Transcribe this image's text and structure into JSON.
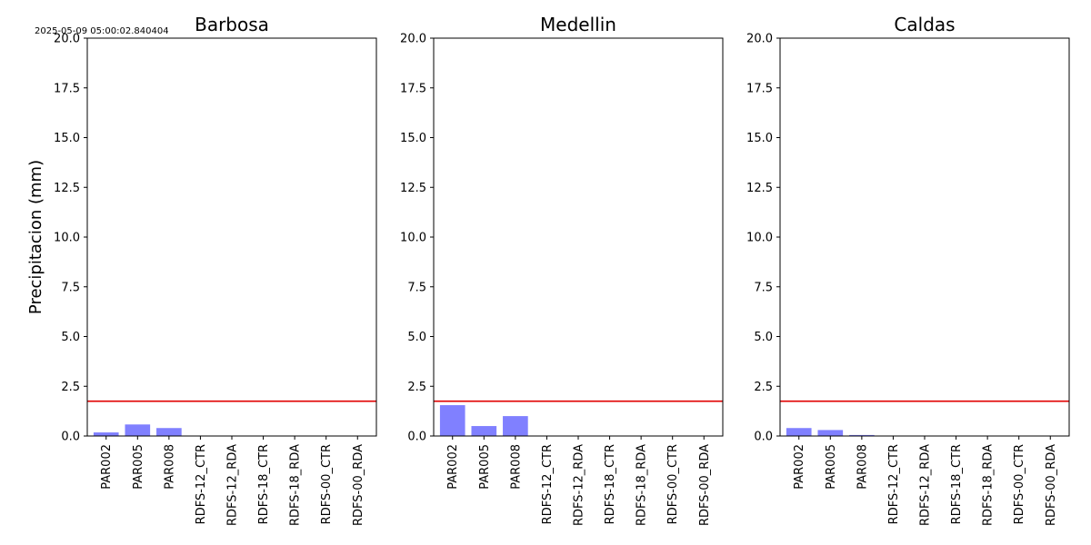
{
  "timestamp": "2025-05-09 05:00:02.840404",
  "ylabel": "Precipitacion (mm)",
  "colors": {
    "bar": "#8080ff",
    "threshold": "#e00000",
    "axis": "#000000"
  },
  "chart_data": [
    {
      "type": "bar",
      "title": "Barbosa",
      "categories": [
        "PAR002",
        "PAR005",
        "PAR008",
        "RDFS-12_CTR",
        "RDFS-12_RDA",
        "RDFS-18_CTR",
        "RDFS-18_RDA",
        "RDFS-00_CTR",
        "RDFS-00_RDA"
      ],
      "values": [
        0.18,
        0.58,
        0.4,
        0,
        0,
        0,
        0,
        0,
        0
      ],
      "threshold": 1.75,
      "ylim": [
        0,
        20
      ],
      "yticks": [
        "0.0",
        "2.5",
        "5.0",
        "7.5",
        "10.0",
        "12.5",
        "15.0",
        "17.5",
        "20.0"
      ],
      "grid": false
    },
    {
      "type": "bar",
      "title": "Medellin",
      "categories": [
        "PAR002",
        "PAR005",
        "PAR008",
        "RDFS-12_CTR",
        "RDFS-12_RDA",
        "RDFS-18_CTR",
        "RDFS-18_RDA",
        "RDFS-00_CTR",
        "RDFS-00_RDA"
      ],
      "values": [
        1.55,
        0.5,
        1.0,
        0,
        0,
        0,
        0,
        0,
        0
      ],
      "threshold": 1.75,
      "ylim": [
        0,
        20
      ],
      "yticks": [
        "0.0",
        "2.5",
        "5.0",
        "7.5",
        "10.0",
        "12.5",
        "15.0",
        "17.5",
        "20.0"
      ],
      "grid": false
    },
    {
      "type": "bar",
      "title": "Caldas",
      "categories": [
        "PAR002",
        "PAR005",
        "PAR008",
        "RDFS-12_CTR",
        "RDFS-12_RDA",
        "RDFS-18_CTR",
        "RDFS-18_RDA",
        "RDFS-00_CTR",
        "RDFS-00_RDA"
      ],
      "values": [
        0.4,
        0.3,
        0.05,
        0,
        0,
        0,
        0,
        0,
        0
      ],
      "threshold": 1.75,
      "ylim": [
        0,
        20
      ],
      "yticks": [
        "0.0",
        "2.5",
        "5.0",
        "7.5",
        "10.0",
        "12.5",
        "15.0",
        "17.5",
        "20.0"
      ],
      "grid": false
    }
  ]
}
